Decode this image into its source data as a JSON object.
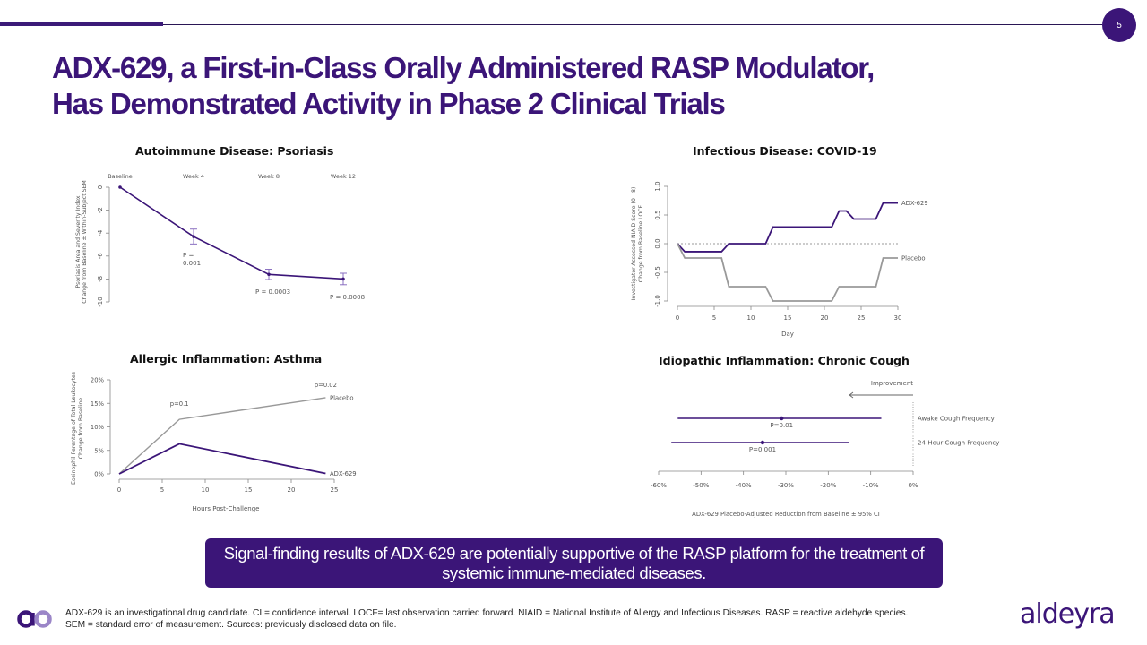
{
  "page_number": "5",
  "title": {
    "line1": "ADX-629, a First-in-Class Orally Administered RASP Modulator,",
    "line2": "Has Demonstrated Activity in Phase 2 Clinical Trials"
  },
  "callout": "Signal-finding results of ADX-629 are potentially supportive of the RASP platform for the treatment of systemic immune-mediated diseases.",
  "footnote": {
    "line1": "ADX-629 is an investigational drug candidate. CI = confidence interval. LOCF= last observation carried forward. NIAID = National Institute of Allergy and Infectious Diseases. RASP = reactive aldehyde species.",
    "line2": "SEM = standard error of measurement. Sources: previously disclosed data on file."
  },
  "brand": {
    "wordmark": "aldeyra",
    "primary_color": "#3b1578",
    "secondary_color": "#9b86c8"
  },
  "chart_data": [
    {
      "id": "psoriasis",
      "type": "line",
      "title": "Autoimmune Disease: Psoriasis",
      "ylabel_line1": "Psoriasis Area and Severity Index",
      "ylabel_line2": "Change from Baseline ± Within-Subject SEM",
      "xlabel": "",
      "categories": [
        "Baseline",
        "Week 4",
        "Week 8",
        "Week 12"
      ],
      "x": [
        0,
        4,
        8,
        12
      ],
      "values": [
        0,
        -4.3,
        -7.6,
        -8.0
      ],
      "error": [
        0,
        0.65,
        0.45,
        0.5
      ],
      "ylim": [
        -10,
        0
      ],
      "yticks": [
        0,
        -2,
        -4,
        -6,
        -8,
        -10
      ],
      "ytick_labels": [
        "0",
        "-2",
        "-4",
        "-6",
        "-8",
        "-10"
      ],
      "annotations": [
        {
          "x": 4,
          "text_lines": [
            "P =",
            "0.001"
          ]
        },
        {
          "x": 8,
          "text_lines": [
            "P = 0.0003"
          ]
        },
        {
          "x": 12,
          "text_lines": [
            "P = 0.0008"
          ]
        }
      ],
      "color": "#3b1578"
    },
    {
      "id": "covid",
      "type": "line",
      "title": "Infectious Disease: COVID-19",
      "ylabel_line1": "Investigator-Assessed NIAID Score (0 - 8)",
      "ylabel_line2": "Change from Baseline LOCF",
      "xlabel": "Day",
      "xlim": [
        0,
        30
      ],
      "ylim": [
        -1.0,
        1.0
      ],
      "xticks": [
        0,
        5,
        10,
        15,
        20,
        25,
        30
      ],
      "xtick_labels": [
        "0",
        "5",
        "10",
        "15",
        "20",
        "25",
        "30"
      ],
      "yticks": [
        -1.0,
        -0.5,
        0.0,
        0.5,
        1.0
      ],
      "ytick_labels": [
        "-1.0",
        "-0.5",
        "0.0",
        "0.5",
        "1.0"
      ],
      "reference_line": 0,
      "series": [
        {
          "name": "ADX-629",
          "color": "#3b1578",
          "x": [
            0,
            1,
            6,
            7,
            12,
            13,
            21,
            22,
            23,
            24,
            27,
            28,
            30
          ],
          "values": [
            0,
            -0.14,
            -0.14,
            0,
            0,
            0.29,
            0.29,
            0.57,
            0.57,
            0.43,
            0.43,
            0.71,
            0.71
          ]
        },
        {
          "name": "Placebo",
          "color": "#999999",
          "x": [
            0,
            1,
            6,
            7,
            12,
            13,
            21,
            22,
            27,
            28,
            30
          ],
          "values": [
            0,
            -0.25,
            -0.25,
            -0.75,
            -0.75,
            -1.0,
            -1.0,
            -0.75,
            -0.75,
            -0.25,
            -0.25
          ]
        }
      ]
    },
    {
      "id": "asthma",
      "type": "line",
      "title": "Allergic Inflammation: Asthma",
      "ylabel_line1": "Eosinophil Perentage of Total Leukocytes",
      "ylabel_line2": "Change from Baseline",
      "xlabel": "Hours Post-Challenge",
      "xlim": [
        0,
        25
      ],
      "ylim": [
        0,
        20
      ],
      "xticks": [
        0,
        5,
        10,
        15,
        20,
        25
      ],
      "xtick_labels": [
        "0",
        "5",
        "10",
        "15",
        "20",
        "25"
      ],
      "yticks": [
        0,
        5,
        10,
        15,
        20
      ],
      "ytick_labels": [
        "0%",
        "5%",
        "10%",
        "15%",
        "20%"
      ],
      "series": [
        {
          "name": "Placebo",
          "color": "#999999",
          "x": [
            0,
            7,
            24
          ],
          "values": [
            0,
            11.6,
            16.2
          ]
        },
        {
          "name": "ADX-629",
          "color": "#3b1578",
          "x": [
            0,
            7,
            24
          ],
          "values": [
            0,
            6.4,
            0.1
          ]
        }
      ],
      "annotations": [
        {
          "x": 7,
          "y": 15,
          "text": "p=0.1"
        },
        {
          "x": 24,
          "y": 19,
          "text": "p=0.02"
        }
      ]
    },
    {
      "id": "cough",
      "type": "forest",
      "title": "Idiopathic Inflammation: Chronic Cough",
      "xlabel": "ADX-629 Placebo-Adjusted Reduction from Baseline ± 95% CI",
      "xlim": [
        -60,
        0
      ],
      "xticks": [
        -60,
        -50,
        -40,
        -30,
        -20,
        -10,
        0
      ],
      "xtick_labels": [
        "-60%",
        "-50%",
        "-40%",
        "-30%",
        "-20%",
        "-10%",
        "0%"
      ],
      "direction_label": "Improvement",
      "rows": [
        {
          "label": "Awake Cough Frequency",
          "estimate": -31,
          "lower": -55.5,
          "upper": -7.5,
          "p": "P=0.01"
        },
        {
          "label": "24-Hour Cough Frequency",
          "estimate": -35.5,
          "lower": -57,
          "upper": -15,
          "p": "P=0.001"
        }
      ],
      "color": "#3b1578"
    }
  ]
}
